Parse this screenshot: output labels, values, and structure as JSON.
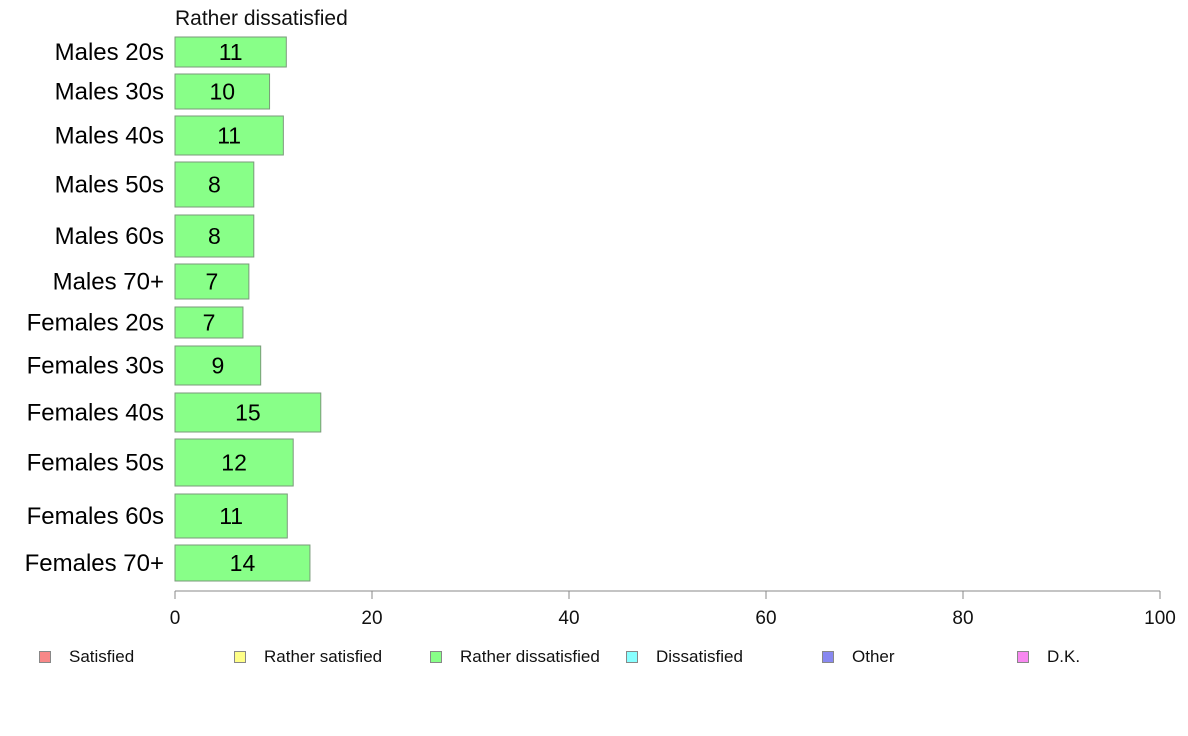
{
  "chart_data": {
    "type": "bar",
    "orientation": "horizontal",
    "title": "Rather dissatisfied",
    "categories": [
      "Males 20s",
      "Males 30s",
      "Males 40s",
      "Males 50s",
      "Males 60s",
      "Males 70+",
      "Females 20s",
      "Females 30s",
      "Females 40s",
      "Females 50s",
      "Females 60s",
      "Females 70+"
    ],
    "series": [
      {
        "name": "Rather dissatisfied",
        "values": [
          11.3,
          9.6,
          11.0,
          8.0,
          8.0,
          7.5,
          6.9,
          8.7,
          14.8,
          12.0,
          11.4,
          13.7
        ],
        "data_labels": [
          "11",
          "10",
          "11",
          "8",
          "8",
          "7",
          "7",
          "9",
          "15",
          "12",
          "11",
          "14"
        ]
      }
    ],
    "xlim": [
      0,
      100
    ],
    "x_ticks": [
      "0",
      "20",
      "40",
      "60",
      "80",
      "100"
    ],
    "xlabel": "",
    "ylabel": "",
    "grid": false,
    "bar_color": "#88ff88",
    "legend_position": "bottom",
    "legend": [
      {
        "label": "Satisfied",
        "color": "#f88888"
      },
      {
        "label": "Rather satisfied",
        "color": "#ffff88"
      },
      {
        "label": "Rather dissatisfied",
        "color": "#88ff88"
      },
      {
        "label": "Dissatisfied",
        "color": "#88ffff"
      },
      {
        "label": "Other",
        "color": "#8888f0"
      },
      {
        "label": "D.K.",
        "color": "#f888f0"
      }
    ]
  }
}
